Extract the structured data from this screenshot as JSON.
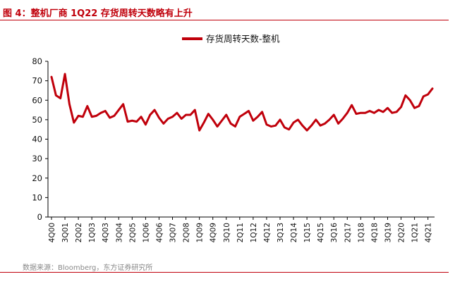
{
  "figure": {
    "title": "图 4：整机厂商 1Q22 存货周转天数略有上升",
    "source": "数据来源：Bloomberg，东方证券研究所",
    "accent_color": "#c0000b"
  },
  "chart_data": {
    "type": "line",
    "title": "",
    "xlabel": "",
    "ylabel": "",
    "ylim": [
      0,
      80
    ],
    "yticks": [
      0,
      10,
      20,
      30,
      40,
      50,
      60,
      70,
      80
    ],
    "grid": false,
    "legend_position": "top-center",
    "x_tick_labels": [
      "4Q00",
      "3Q01",
      "2Q02",
      "1Q03",
      "4Q03",
      "3Q04",
      "2Q05",
      "1Q06",
      "4Q06",
      "3Q07",
      "2Q08",
      "1Q09",
      "4Q09",
      "3Q10",
      "2Q11",
      "1Q12",
      "4Q12",
      "3Q13",
      "2Q14",
      "1Q15",
      "4Q15",
      "3Q16",
      "2Q17",
      "1Q18",
      "4Q18",
      "3Q19",
      "2Q20",
      "1Q21",
      "4Q21"
    ],
    "series": [
      {
        "name": "存货周转天数-整机",
        "color": "#c0000b",
        "start": "4Q00",
        "end": "1Q22",
        "values": [
          72,
          62.5,
          61,
          73.5,
          58,
          48.5,
          52,
          51.5,
          57,
          51.5,
          52,
          53.5,
          54.5,
          51,
          52,
          55,
          58,
          49,
          49.5,
          49,
          51.5,
          47.5,
          52.5,
          55,
          51,
          48,
          50.5,
          51.5,
          53.5,
          50.5,
          52.5,
          52.5,
          55,
          44.5,
          48.5,
          53,
          50,
          46.5,
          49.5,
          52.5,
          48,
          46.5,
          51.5,
          53,
          54.5,
          49.5,
          51.5,
          54,
          47.5,
          46.5,
          47,
          50,
          46,
          45,
          48.5,
          50,
          47,
          44.5,
          47,
          50,
          47,
          48,
          50,
          52.5,
          48,
          50.5,
          53.5,
          57.5,
          53,
          53.5,
          53.5,
          54.5,
          53.5,
          55,
          54,
          56,
          53.5,
          54,
          56.5,
          62.5,
          60,
          56,
          57,
          62,
          63,
          66
        ]
      }
    ]
  }
}
